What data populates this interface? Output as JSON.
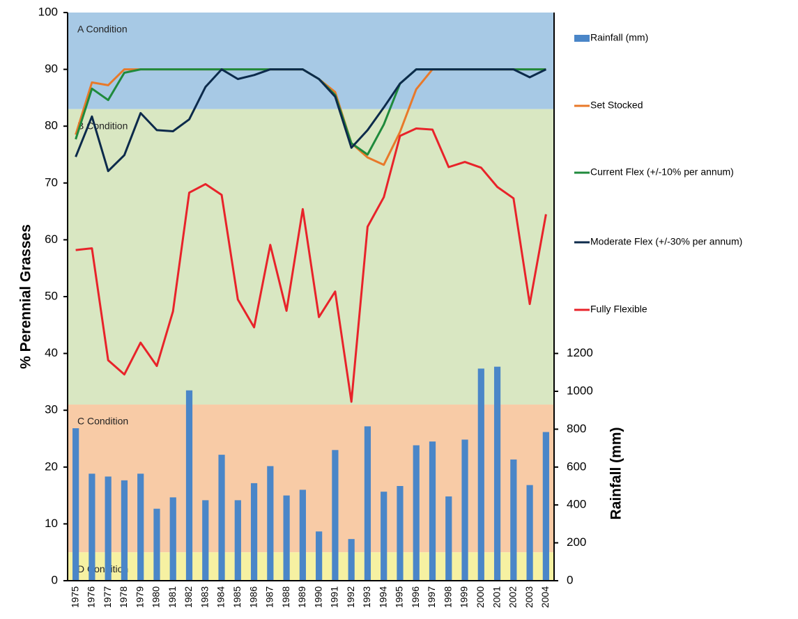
{
  "chart_data": {
    "type": "line",
    "categories": [
      "1975",
      "1976",
      "1977",
      "1978",
      "1979",
      "1980",
      "1981",
      "1982",
      "1983",
      "1984",
      "1985",
      "1986",
      "1987",
      "1988",
      "1989",
      "1990",
      "1991",
      "1992",
      "1993",
      "1994",
      "1995",
      "1996",
      "1997",
      "1998",
      "1999",
      "2000",
      "2001",
      "2002",
      "2003",
      "2004"
    ],
    "ylabel": "% Perennial Grasses",
    "y2label": "Rainfall (mm)",
    "ylim": [
      0,
      100
    ],
    "yticks": [
      0,
      10,
      20,
      30,
      40,
      50,
      60,
      70,
      80,
      90,
      100
    ],
    "y2lim": [
      0,
      3000
    ],
    "y2ticks": [
      0,
      200,
      400,
      600,
      800,
      1000,
      1200
    ],
    "bands": [
      {
        "label": "A Condition",
        "from": 83,
        "to": 100,
        "color": "#a7c9e5"
      },
      {
        "label": "B Condition",
        "from": 31,
        "to": 83,
        "color": "#d9e7c2"
      },
      {
        "label": "C Condition",
        "from": 5,
        "to": 31,
        "color": "#f8cba6"
      },
      {
        "label": "D Condition",
        "from": 0,
        "to": 5,
        "color": "#f6f1a2"
      }
    ],
    "series": [
      {
        "name": "Rainfall (mm)",
        "type": "bar",
        "axis": "y2",
        "color": "#4a86c8",
        "values": [
          805,
          565,
          550,
          530,
          565,
          380,
          440,
          1005,
          425,
          665,
          425,
          515,
          605,
          450,
          480,
          260,
          690,
          220,
          815,
          470,
          500,
          715,
          735,
          445,
          745,
          1120,
          1130,
          640,
          505,
          785
        ]
      },
      {
        "name": "Set Stocked",
        "type": "line",
        "color": "#e8792a",
        "values": [
          78.5,
          87.7,
          87.2,
          90,
          90,
          90,
          90,
          90,
          90,
          90,
          90,
          90,
          90,
          90,
          90,
          88.3,
          86,
          77,
          74.5,
          73.2,
          79,
          86.5,
          90,
          90,
          90,
          90,
          90,
          90,
          90,
          90
        ]
      },
      {
        "name": "Current Flex (+/-10% per annum)",
        "type": "line",
        "color": "#1f8a3c",
        "values": [
          77.7,
          86.6,
          84.6,
          89.4,
          90,
          90,
          90,
          90,
          90,
          90,
          90,
          90,
          90,
          90,
          90,
          88.3,
          85.5,
          77,
          75,
          80.3,
          87.5,
          90,
          90,
          90,
          90,
          90,
          90,
          90,
          90,
          90
        ]
      },
      {
        "name": "Moderate Flex (+/-30% per annum)",
        "type": "line",
        "color": "#0c2a4b",
        "values": [
          74.6,
          81.7,
          72.1,
          74.9,
          82.3,
          79.3,
          79.1,
          81.2,
          86.9,
          90,
          88.3,
          89,
          90,
          90,
          90,
          88.3,
          85.2,
          76.2,
          79.3,
          83.3,
          87.5,
          90,
          90,
          90,
          90,
          90,
          90,
          90,
          88.6,
          90
        ]
      },
      {
        "name": "Fully Flexible",
        "type": "line",
        "color": "#e8232a",
        "values": [
          58.2,
          58.5,
          38.8,
          36.3,
          41.9,
          37.8,
          47.4,
          68.3,
          69.8,
          67.9,
          49.5,
          44.6,
          59.1,
          47.5,
          65.4,
          46.4,
          50.9,
          31.5,
          62.3,
          67.5,
          78.3,
          79.6,
          79.4,
          72.8,
          73.7,
          72.7,
          69.3,
          67.3,
          48.7,
          64.5
        ]
      }
    ]
  }
}
